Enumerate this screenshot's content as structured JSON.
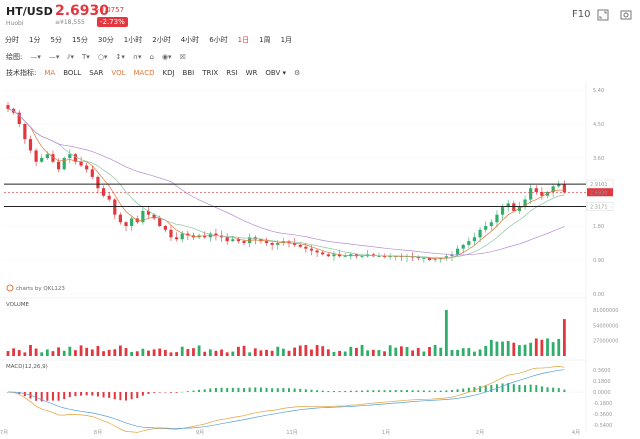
{
  "header": {
    "symbol": "HT/USD",
    "exchange": "Huobi",
    "price": "2.6930",
    "change": "-0.0757",
    "volume": "≡¥18,555",
    "change_pct": "-2.73%",
    "f10_label": "F10"
  },
  "intervals": [
    "分时",
    "1分",
    "5分",
    "15分",
    "30分",
    "1小时",
    "2小时",
    "4小时",
    "6小时",
    "1日",
    "1周",
    "1月"
  ],
  "active_interval": "1日",
  "drawing_toolbar": {
    "label": "绘图:",
    "tools": [
      "line-tool-icon",
      "hline-tool-icon",
      "channel-tool-icon",
      "text-tool-icon",
      "circle-tool-icon",
      "price-range-tool-icon",
      "magnet-tool-icon",
      "lock-tool-icon",
      "eye-tool-icon",
      "trash-tool-icon"
    ]
  },
  "indicator_toolbar": {
    "label": "技术指标:",
    "indicators": [
      "MA",
      "BOLL",
      "SAR",
      "VOL",
      "MACD",
      "KDJ",
      "BBI",
      "TRIX",
      "RSI",
      "WR",
      "OBV"
    ],
    "active": [
      "MA",
      "VOL",
      "MACD"
    ]
  },
  "chart": {
    "price_axis_ticks": [
      "5.40",
      "4.50",
      "3.60",
      "2.70",
      "1.80",
      "0.90",
      "0.00"
    ],
    "horizontal_lines": [
      {
        "label": "2.9101",
        "color": "#222222"
      },
      {
        "label": "2.6930",
        "color": "#e2373f"
      },
      {
        "label": "2.3171",
        "color": "#222222"
      }
    ],
    "watermark": "charts by QKL123",
    "volume_label": "VOLUME",
    "volume_ticks": [
      "81000000",
      "54000000",
      "27000000"
    ],
    "macd_label": "MACD(12,26,9)",
    "macd_ticks": [
      "0.3600",
      "0.1800",
      "0.0000",
      "-0.1800",
      "-0.3600",
      "-0.5400"
    ],
    "x_axis_labels": [
      "7月",
      "8月",
      "9月",
      "10月",
      "11月",
      "12月",
      "1月",
      "2月",
      "3月",
      "4月"
    ]
  },
  "chart_data": {
    "type": "candlestick",
    "title": "",
    "x_labels": [
      "7月",
      "8月",
      "9月",
      "10月",
      "11月",
      "12月",
      "1月",
      "2月",
      "3月",
      "4月"
    ],
    "ylim": [
      0,
      5.4
    ],
    "price_path": [
      4.9,
      4.8,
      4.5,
      4.1,
      3.8,
      3.5,
      3.6,
      3.7,
      3.5,
      3.3,
      3.6,
      3.7,
      3.5,
      3.4,
      3.3,
      3.1,
      2.8,
      2.6,
      2.5,
      2.1,
      1.9,
      1.8,
      2.0,
      1.9,
      2.2,
      2.1,
      2.0,
      1.8,
      1.7,
      1.5,
      1.45,
      1.6,
      1.55,
      1.5,
      1.55,
      1.5,
      1.6,
      1.55,
      1.5,
      1.4,
      1.45,
      1.4,
      1.35,
      1.5,
      1.45,
      1.4,
      1.35,
      1.3,
      1.35,
      1.4,
      1.35,
      1.3,
      1.25,
      1.2,
      1.15,
      1.1,
      1.05,
      1.0,
      1.05,
      1.0,
      1.0,
      1.05,
      1.0,
      1.0,
      1.05,
      1.0,
      1.0,
      0.98,
      1.0,
      1.0,
      0.98,
      1.0,
      0.97,
      0.95,
      0.95,
      0.9,
      0.92,
      0.95,
      1.0,
      1.05,
      1.2,
      1.3,
      1.4,
      1.5,
      1.7,
      1.8,
      1.9,
      2.1,
      2.3,
      2.4,
      2.2,
      2.3,
      2.5,
      2.8,
      2.7,
      2.6,
      2.7,
      2.85,
      2.9,
      2.69
    ],
    "volume_spikes": [
      {
        "index": 78,
        "value": 81000000
      },
      {
        "index": 99,
        "value": 65000000
      }
    ]
  }
}
